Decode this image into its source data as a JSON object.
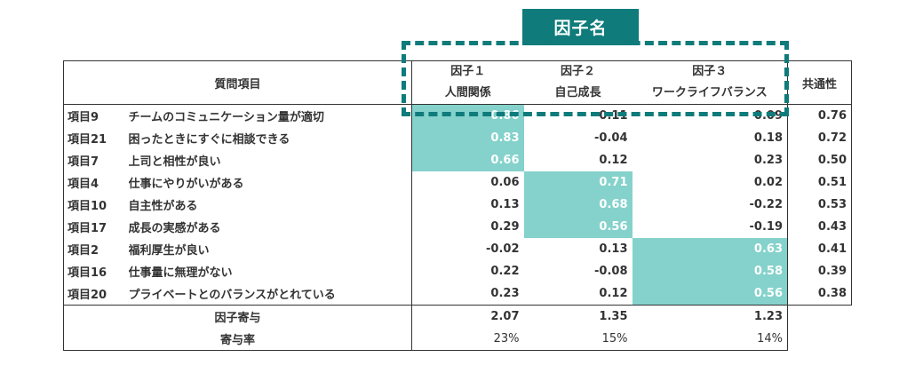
{
  "overlay": {
    "label": "因子名"
  },
  "header": {
    "question_col": "質問項目",
    "factors": [
      {
        "line1": "因子１",
        "line2": "人間関係"
      },
      {
        "line1": "因子２",
        "line2": "自己成長"
      },
      {
        "line1": "因子３",
        "line2": "ワークライフバランス"
      }
    ],
    "communality": "共通性"
  },
  "rows": [
    {
      "code": "項目9",
      "question": "チームのコミュニケーション量が適切",
      "f1": "0.86",
      "f2": "0.11",
      "f3": "0.09",
      "comm": "0.76"
    },
    {
      "code": "項目21",
      "question": "困ったときにすぐに相談できる",
      "f1": "0.83",
      "f2": "-0.04",
      "f3": "0.18",
      "comm": "0.72"
    },
    {
      "code": "項目7",
      "question": "上司と相性が良い",
      "f1": "0.66",
      "f2": "0.12",
      "f3": "0.23",
      "comm": "0.50"
    },
    {
      "code": "項目4",
      "question": "仕事にやりがいがある",
      "f1": "0.06",
      "f2": "0.71",
      "f3": "0.02",
      "comm": "0.51"
    },
    {
      "code": "項目10",
      "question": "自主性がある",
      "f1": "0.13",
      "f2": "0.68",
      "f3": "-0.22",
      "comm": "0.53"
    },
    {
      "code": "項目17",
      "question": "成長の実感がある",
      "f1": "0.29",
      "f2": "0.56",
      "f3": "-0.19",
      "comm": "0.43"
    },
    {
      "code": "項目2",
      "question": "福利厚生が良い",
      "f1": "-0.02",
      "f2": "0.13",
      "f3": "0.63",
      "comm": "0.41"
    },
    {
      "code": "項目16",
      "question": "仕事量に無理がない",
      "f1": "0.22",
      "f2": "-0.08",
      "f3": "0.58",
      "comm": "0.39"
    },
    {
      "code": "項目20",
      "question": "プライベートとのバランスがとれている",
      "f1": "0.23",
      "f2": "0.12",
      "f3": "0.56",
      "comm": "0.38"
    }
  ],
  "footer": {
    "contribution": {
      "label": "因子寄与",
      "f1": "2.07",
      "f2": "1.35",
      "f3": "1.23"
    },
    "ratio": {
      "label": "寄与率",
      "f1": "23%",
      "f2": "15%",
      "f3": "14%"
    }
  },
  "colors": {
    "accent": "#0f7b7b",
    "highlight": "#84d2cb"
  }
}
